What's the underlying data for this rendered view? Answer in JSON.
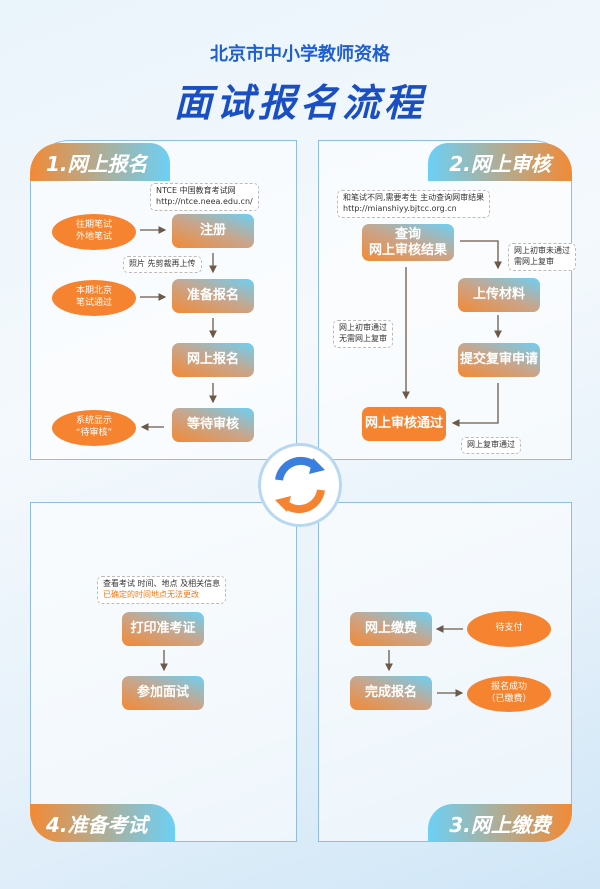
{
  "header": {
    "subtitle": "北京市中小学教师资格",
    "title": "面试报名流程"
  },
  "s1": {
    "tab": "1.网上报名",
    "note1": [
      "NTCE 中国教育考试网",
      "http://ntce.neea.edu.cn/"
    ],
    "note2": "照片 先剪裁再上传",
    "steps": [
      "注册",
      "准备报名",
      "网上报名",
      "等待审核"
    ],
    "ell": [
      [
        "往期笔试",
        "外地笔试"
      ],
      [
        "本期北京",
        "笔试通过"
      ],
      [
        "系统显示",
        "“待审核”"
      ]
    ]
  },
  "s2": {
    "tab": "2.网上审核",
    "note1": [
      "和笔试不同,需要考生 主动查询网审结果",
      "http://mianshiyy.bjtcc.org.cn"
    ],
    "steps": [
      "查询",
      "网上审核结果",
      "上传材料",
      "提交复审申请",
      "网上审核通过"
    ],
    "note2": [
      "网上初审未通过",
      "需网上复审"
    ],
    "note3": [
      "网上初审通过",
      "无需网上复审"
    ],
    "note4": "网上复审通过"
  },
  "s4": {
    "tab": "4.准备考试",
    "note": [
      "查看考试 时间、地点 及相关信息",
      "已确定的时间地点无法更改"
    ],
    "steps": [
      "打印准考证",
      "参加面试"
    ]
  },
  "s3": {
    "tab": "3.网上缴费",
    "steps": [
      "网上缴费",
      "完成报名"
    ],
    "ell": [
      "待支付",
      [
        "报名成功",
        "（已缴费）"
      ]
    ]
  },
  "colors": {
    "orange": "#f5832f",
    "blue": "#1f5fcf",
    "cyan": "#6cd0f5"
  }
}
